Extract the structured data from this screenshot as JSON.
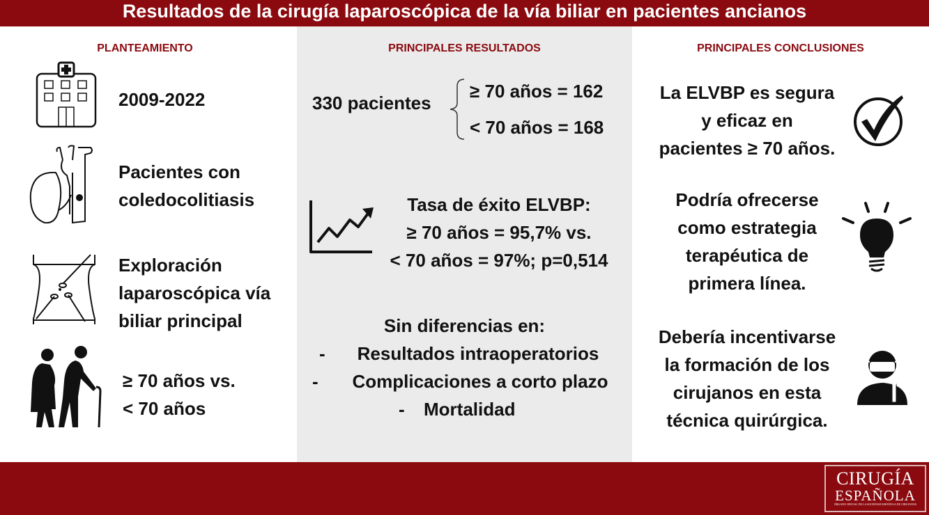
{
  "title": "Resultados de la cirugía laparoscópica de la vía biliar en pacientes ancianos",
  "columns": {
    "planteamiento": {
      "heading": "PLANTEAMIENTO",
      "items": [
        {
          "lines": [
            "2009-2022"
          ],
          "icon": "hospital-icon"
        },
        {
          "lines": [
            "Pacientes con",
            "coledocolitiasis"
          ],
          "icon": "gallbladder-icon"
        },
        {
          "lines": [
            "Exploración",
            "laparoscópica vía",
            "biliar principal"
          ],
          "icon": "laparoscopy-icon"
        },
        {
          "lines": [
            "≥ 70 años vs.",
            "< 70 años"
          ],
          "icon": "elderly-couple-icon"
        }
      ]
    },
    "resultados": {
      "heading": "PRINCIPALES RESULTADOS",
      "patients_total": "330 pacientes",
      "group_ge70": "≥ 70 años = 162",
      "group_lt70": "< 70 años = 168",
      "success": [
        "Tasa de éxito ELVBP:",
        "≥ 70 años = 95,7% vs.",
        "< 70 años = 97%; p=0,514"
      ],
      "no_diff_title": "Sin diferencias en:",
      "no_diff_items": [
        "Resultados intraoperatorios",
        "Complicaciones a corto plazo",
        "Mortalidad"
      ],
      "bullet": "-",
      "chart_icon": "trend-chart-icon"
    },
    "conclusiones": {
      "heading": "PRINCIPALES CONCLUSIONES",
      "items": [
        {
          "lines": [
            "La ELVBP es segura",
            "y eficaz en",
            "pacientes ≥ 70 años."
          ],
          "icon": "checkmark-icon"
        },
        {
          "lines": [
            "Podría ofrecerse",
            "como estrategia",
            "terapéutica de",
            "primera línea."
          ],
          "icon": "lightbulb-icon"
        },
        {
          "lines": [
            "Debería incentivarse",
            "la formación de los",
            "cirujanos en esta",
            "técnica quirúrgica."
          ],
          "icon": "surgeon-icon"
        }
      ]
    }
  },
  "logo": {
    "line1": "CIRUGÍA",
    "line2": "ESPAÑOLA",
    "line3": "ÓRGANO OFICIAL DE LA SOCIEDAD ESPAÑOLA DE CIRUJANOS"
  },
  "colors": {
    "brand": "#8b0a0f",
    "panel": "#ebebeb"
  }
}
